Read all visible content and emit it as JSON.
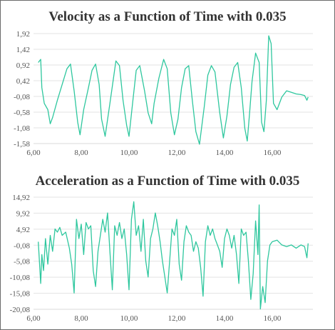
{
  "chart_data": [
    {
      "type": "line",
      "title": "Velocity as a Function of Time with 0.035",
      "xlabel": "",
      "ylabel": "",
      "xlim": [
        6,
        17.7
      ],
      "ylim": [
        -1.58,
        1.92
      ],
      "x_ticks": [
        "6,00",
        "8,00",
        "10,00",
        "12,00",
        "14,00",
        "16,00"
      ],
      "x_tick_values": [
        6,
        8,
        10,
        12,
        14,
        16
      ],
      "y_ticks": [
        "1,92",
        "1,42",
        "0,92",
        "0,42",
        "-0,08",
        "-0,58",
        "-1,08",
        "-1,58"
      ],
      "y_tick_values": [
        1.92,
        1.42,
        0.92,
        0.42,
        -0.08,
        -0.58,
        -1.08,
        -1.58
      ],
      "grid": true,
      "color": "#2ec79e",
      "series": [
        {
          "name": "",
          "x": [
            6.2,
            6.3,
            6.35,
            6.45,
            6.6,
            6.7,
            6.8,
            7.0,
            7.2,
            7.4,
            7.55,
            7.7,
            7.85,
            7.95,
            8.1,
            8.3,
            8.45,
            8.6,
            8.75,
            8.85,
            9.0,
            9.2,
            9.35,
            9.45,
            9.6,
            9.75,
            9.9,
            10.0,
            10.15,
            10.3,
            10.45,
            10.65,
            10.8,
            10.95,
            11.05,
            11.25,
            11.45,
            11.6,
            11.75,
            11.9,
            12.05,
            12.2,
            12.35,
            12.5,
            12.65,
            12.8,
            12.95,
            13.15,
            13.3,
            13.45,
            13.6,
            13.8,
            13.95,
            14.1,
            14.25,
            14.4,
            14.55,
            14.7,
            14.85,
            14.95,
            15.05,
            15.15,
            15.3,
            15.45,
            15.55,
            15.65,
            15.75,
            15.85,
            15.95,
            16.05,
            16.2,
            16.4,
            16.6,
            16.8,
            17.0,
            17.2,
            17.35,
            17.45,
            17.5
          ],
          "y": [
            1.0,
            1.1,
            0.2,
            -0.3,
            -0.5,
            -0.95,
            -0.75,
            -0.2,
            0.3,
            0.8,
            0.95,
            0.1,
            -0.9,
            -1.3,
            -0.5,
            0.2,
            0.75,
            0.95,
            0.3,
            -0.8,
            -1.35,
            -0.3,
            0.5,
            1.05,
            0.9,
            -0.2,
            -1.0,
            -1.35,
            -0.3,
            0.75,
            0.9,
            0.1,
            -0.6,
            -0.95,
            -0.3,
            0.5,
            1.1,
            0.8,
            -0.6,
            -1.3,
            -0.8,
            0.2,
            0.8,
            0.9,
            -0.2,
            -1.2,
            -1.6,
            -0.4,
            0.6,
            0.9,
            0.7,
            -0.6,
            -1.4,
            -0.7,
            0.3,
            0.85,
            1.0,
            0.2,
            -1.1,
            -1.5,
            -0.6,
            0.4,
            1.3,
            1.0,
            -0.9,
            -1.2,
            -0.2,
            1.85,
            1.6,
            -0.3,
            -0.5,
            -0.1,
            0.1,
            0.05,
            0.0,
            -0.02,
            -0.05,
            -0.2,
            -0.1
          ]
        }
      ]
    },
    {
      "type": "line",
      "title": "Acceleration as a Function of Time with 0.035",
      "xlabel": "",
      "ylabel": "",
      "xlim": [
        6,
        17.7
      ],
      "ylim": [
        -20.08,
        14.92
      ],
      "x_ticks": [
        "6,00",
        "8,00",
        "10,00",
        "12,00",
        "14,00",
        "16,00"
      ],
      "x_tick_values": [
        6,
        8,
        10,
        12,
        14,
        16
      ],
      "y_ticks": [
        "14,92",
        "9,92",
        "4,92",
        "-0,08",
        "-5,08",
        "-10,08",
        "-15,08",
        "-20,08"
      ],
      "y_tick_values": [
        14.92,
        9.92,
        4.92,
        -0.08,
        -5.08,
        -10.08,
        -15.08,
        -20.08
      ],
      "grid": true,
      "color": "#2ec79e",
      "series": [
        {
          "name": "",
          "x": [
            6.2,
            6.3,
            6.35,
            6.42,
            6.5,
            6.6,
            6.7,
            6.8,
            6.9,
            7.0,
            7.1,
            7.2,
            7.35,
            7.5,
            7.6,
            7.7,
            7.8,
            7.9,
            8.0,
            8.1,
            8.2,
            8.3,
            8.4,
            8.5,
            8.6,
            8.7,
            8.8,
            8.9,
            9.0,
            9.1,
            9.2,
            9.3,
            9.4,
            9.5,
            9.6,
            9.7,
            9.8,
            9.9,
            10.0,
            10.1,
            10.2,
            10.3,
            10.4,
            10.5,
            10.6,
            10.7,
            10.8,
            10.9,
            11.0,
            11.1,
            11.2,
            11.3,
            11.4,
            11.5,
            11.6,
            11.7,
            11.8,
            11.9,
            12.0,
            12.1,
            12.2,
            12.3,
            12.4,
            12.5,
            12.6,
            12.7,
            12.8,
            12.9,
            13.0,
            13.1,
            13.2,
            13.3,
            13.4,
            13.5,
            13.6,
            13.7,
            13.8,
            13.9,
            14.0,
            14.1,
            14.2,
            14.3,
            14.4,
            14.5,
            14.6,
            14.7,
            14.8,
            14.9,
            15.0,
            15.1,
            15.2,
            15.3,
            15.4,
            15.45,
            15.5,
            15.6,
            15.7,
            15.8,
            15.9,
            16.0,
            16.2,
            16.4,
            16.6,
            16.8,
            17.0,
            17.2,
            17.35,
            17.45,
            17.5
          ],
          "y": [
            1.0,
            -12.0,
            -3.0,
            -8.0,
            2.0,
            -6.0,
            3.0,
            -2.0,
            5.0,
            4.0,
            5.5,
            3.0,
            4.0,
            -1.0,
            -6.0,
            -15.0,
            8.0,
            2.0,
            6.5,
            -3.0,
            7.0,
            5.0,
            6.0,
            -8.0,
            -13.0,
            -2.0,
            3.0,
            8.0,
            4.0,
            10.0,
            -2.0,
            -14.0,
            6.0,
            3.0,
            7.0,
            2.0,
            5.0,
            -3.0,
            -14.0,
            8.0,
            13.5,
            3.0,
            6.0,
            -2.0,
            8.0,
            -5.0,
            -10.0,
            2.0,
            5.0,
            10.0,
            6.0,
            1.0,
            -5.0,
            -10.0,
            -15.0,
            -5.0,
            5.0,
            3.0,
            8.0,
            -6.0,
            -11.0,
            1.0,
            6.0,
            4.0,
            3.0,
            -2.0,
            1.0,
            -1.0,
            -7.0,
            -16.0,
            1.0,
            6.0,
            3.0,
            5.0,
            2.0,
            0.0,
            -2.0,
            -7.0,
            2.0,
            5.0,
            3.0,
            -1.0,
            3.0,
            -3.0,
            -12.0,
            5.0,
            3.0,
            4.0,
            -5.0,
            -17.0,
            -9.0,
            7.5,
            -3.0,
            12.5,
            -20.0,
            -13.0,
            -18.0,
            -5.0,
            0.0,
            1.0,
            1.5,
            0.0,
            -0.5,
            0.0,
            -1.0,
            0.0,
            -0.5,
            -4.0,
            0.5
          ]
        }
      ]
    }
  ]
}
